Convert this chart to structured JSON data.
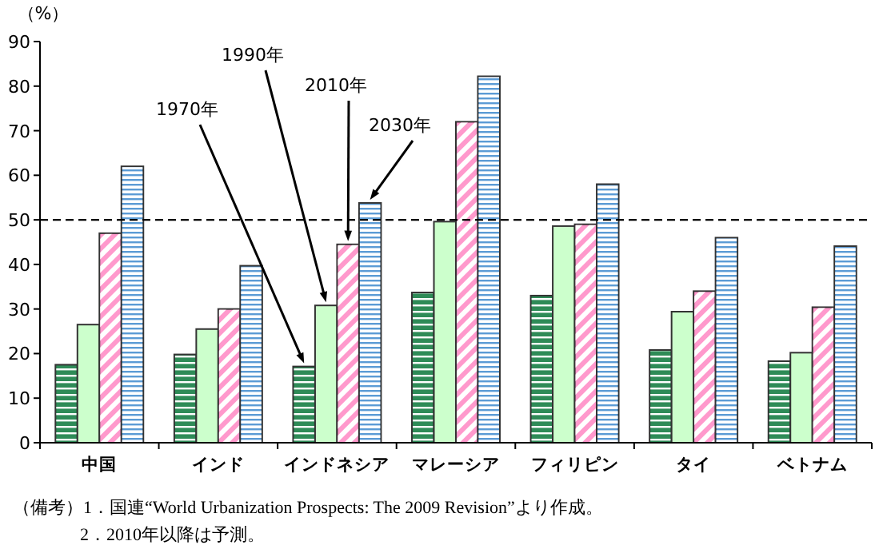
{
  "chart_data": {
    "type": "bar",
    "ylabel": "（%）",
    "categories": [
      "中国",
      "インド",
      "インドネシア",
      "マレーシア",
      "フィリピン",
      "タイ",
      "ベトナム"
    ],
    "series": [
      {
        "name": "1970年",
        "color": "#2e8b57",
        "values": [
          17.5,
          19.8,
          17.1,
          33.7,
          33,
          20.8,
          18.3
        ]
      },
      {
        "name": "1990年",
        "color": "#ccffcc",
        "values": [
          26.5,
          25.5,
          30.8,
          49.6,
          48.6,
          29.4,
          20.2
        ]
      },
      {
        "name": "2010年",
        "color": "#ff99cc",
        "values": [
          47,
          30,
          44.5,
          72,
          49,
          34,
          30.4
        ]
      },
      {
        "name": "2030年",
        "color": "#5b9bd5",
        "values": [
          62,
          39.7,
          53.8,
          82.2,
          58,
          46,
          44.1
        ]
      }
    ],
    "ylim": [
      0,
      90
    ],
    "yticks": [
      0,
      10,
      20,
      30,
      40,
      50,
      60,
      70,
      80,
      90
    ],
    "grid": false,
    "ref_lines": [
      {
        "axis": "y",
        "value": 50,
        "line_style": "dashed",
        "color": "#000000"
      }
    ],
    "annotations": [
      "（備考）1．国連“World Urbanization Prospects: The 2009 Revision”より作成。",
      "2．2010年以降は予測。"
    ]
  }
}
